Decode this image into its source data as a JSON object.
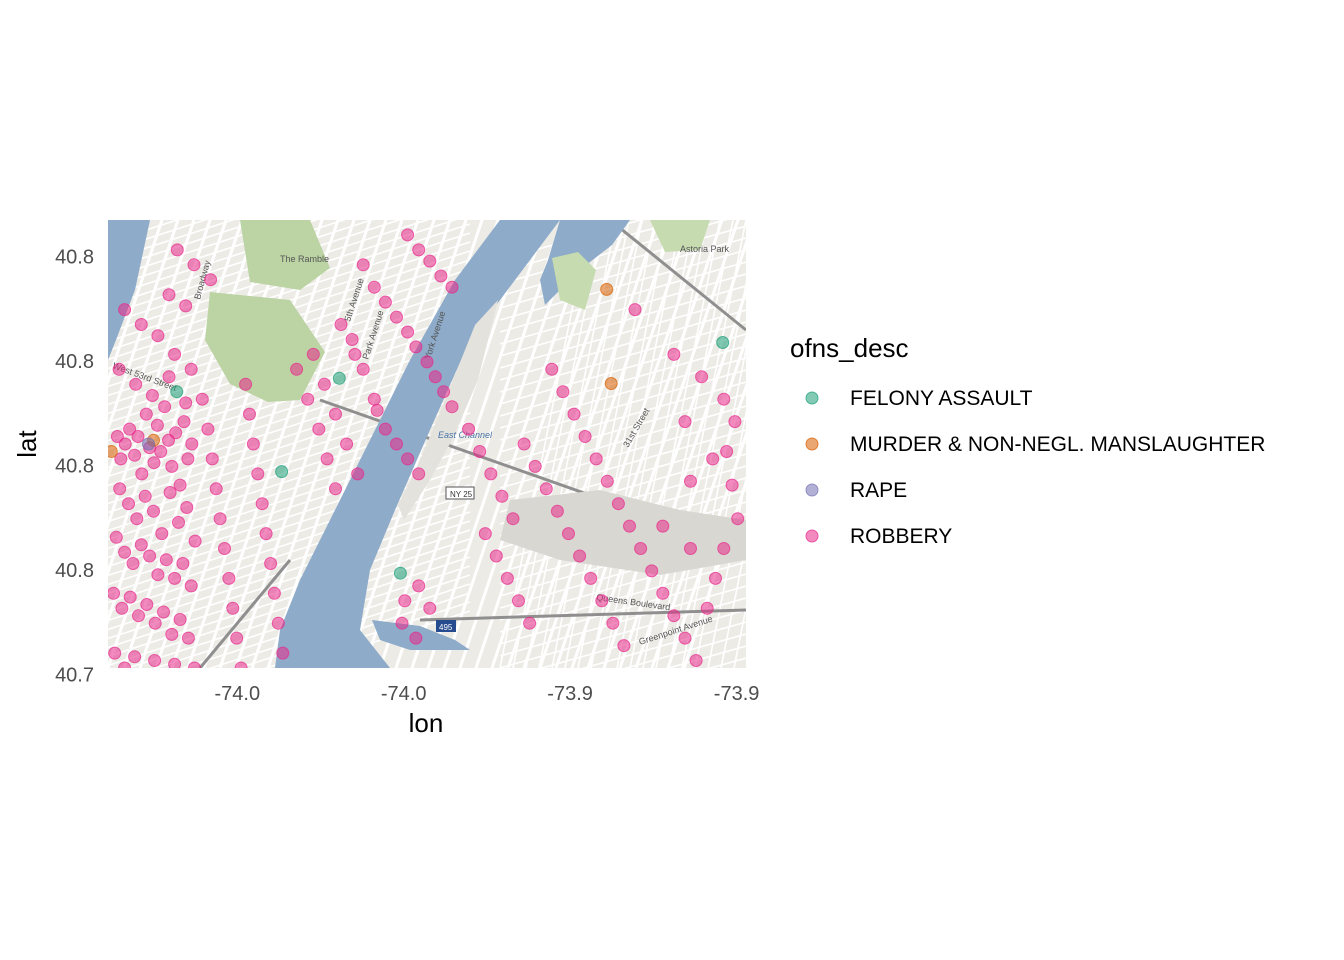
{
  "chart_data": {
    "type": "scatter",
    "title": "",
    "xlabel": "lon",
    "ylabel": "lat",
    "xlim": [
      -74.01,
      -73.895
    ],
    "ylim": [
      40.73,
      40.79
    ],
    "x_ticks": [
      {
        "value": -73.9867,
        "label": "-74.0"
      },
      {
        "value": -73.9567,
        "label": "-74.0"
      },
      {
        "value": -73.9267,
        "label": "-73.9"
      },
      {
        "value": -73.8967,
        "label": "-73.9"
      }
    ],
    "y_ticks": [
      {
        "value": 40.7851,
        "label": "40.8"
      },
      {
        "value": 40.7711,
        "label": "40.8"
      },
      {
        "value": 40.7571,
        "label": "40.8"
      },
      {
        "value": 40.7431,
        "label": "40.8"
      },
      {
        "value": 40.7291,
        "label": "40.7"
      }
    ],
    "basemap_labels": [
      "The Ramble",
      "Astoria Park",
      "West 53rd Street",
      "Broadway",
      "5th Avenue",
      "Park Avenue",
      "York Avenue",
      "East Channel",
      "NY 25",
      "495",
      "Queens Boulevard",
      "Greenpoint Avenue",
      "31st Street"
    ],
    "legend": {
      "title": "ofns_desc",
      "placement": "right",
      "entries": [
        {
          "name": "FELONY ASSAULT",
          "color": "#1b9e77"
        },
        {
          "name": "MURDER & NON-NEGL. MANSLAUGHTER",
          "color": "#d95f02"
        },
        {
          "name": "RAPE",
          "color": "#7570b3"
        },
        {
          "name": "ROBBERY",
          "color": "#e7298a"
        }
      ]
    },
    "series": [
      {
        "name": "FELONY ASSAULT",
        "color": "#1b9e77",
        "points": [
          [
            -73.9976,
            40.767
          ],
          [
            -73.9683,
            40.7688
          ],
          [
            -73.9787,
            40.7563
          ],
          [
            -73.9573,
            40.7427
          ],
          [
            -73.8992,
            40.7736
          ]
        ]
      },
      {
        "name": "MURDER & NON-NEGL. MANSLAUGHTER",
        "color": "#d95f02",
        "points": [
          [
            -74.0094,
            40.759
          ],
          [
            -73.9201,
            40.7807
          ],
          [
            -73.9193,
            40.7681
          ],
          [
            -74.0018,
            40.7605
          ]
        ]
      },
      {
        "name": "RAPE",
        "color": "#7570b3",
        "points": [
          [
            -74.0027,
            40.76
          ]
        ]
      },
      {
        "name": "ROBBERY",
        "color": "#e7298a",
        "points": [
          [
            -74.0083,
            40.761
          ],
          [
            -74.0077,
            40.758
          ],
          [
            -74.0069,
            40.76
          ],
          [
            -74.0061,
            40.762
          ],
          [
            -74.0052,
            40.7585
          ],
          [
            -74.0046,
            40.761
          ],
          [
            -74.0039,
            40.756
          ],
          [
            -74.0031,
            40.764
          ],
          [
            -74.0025,
            40.7595
          ],
          [
            -74.0017,
            40.7575
          ],
          [
            -74.0011,
            40.7625
          ],
          [
            -74.0005,
            40.759
          ],
          [
            -73.9998,
            40.765
          ],
          [
            -73.9991,
            40.7605
          ],
          [
            -73.9985,
            40.757
          ],
          [
            -73.9978,
            40.7615
          ],
          [
            -73.997,
            40.7545
          ],
          [
            -73.9963,
            40.763
          ],
          [
            -73.9956,
            40.758
          ],
          [
            -73.9949,
            40.76
          ],
          [
            -74.0079,
            40.754
          ],
          [
            -74.0063,
            40.752
          ],
          [
            -74.0048,
            40.75
          ],
          [
            -74.0033,
            40.753
          ],
          [
            -74.0018,
            40.751
          ],
          [
            -74.0003,
            40.748
          ],
          [
            -73.9988,
            40.7535
          ],
          [
            -73.9973,
            40.7495
          ],
          [
            -73.9958,
            40.7515
          ],
          [
            -73.9943,
            40.747
          ],
          [
            -74.0085,
            40.7475
          ],
          [
            -74.007,
            40.7455
          ],
          [
            -74.0055,
            40.744
          ],
          [
            -74.004,
            40.7465
          ],
          [
            -74.0025,
            40.745
          ],
          [
            -74.001,
            40.7425
          ],
          [
            -73.9995,
            40.7445
          ],
          [
            -73.998,
            40.742
          ],
          [
            -73.9965,
            40.744
          ],
          [
            -73.995,
            40.741
          ],
          [
            -74.009,
            40.74
          ],
          [
            -74.0075,
            40.738
          ],
          [
            -74.006,
            40.7395
          ],
          [
            -74.0045,
            40.737
          ],
          [
            -74.003,
            40.7385
          ],
          [
            -74.0015,
            40.736
          ],
          [
            -74.0,
            40.7375
          ],
          [
            -73.9985,
            40.7345
          ],
          [
            -73.997,
            40.7365
          ],
          [
            -73.9955,
            40.734
          ],
          [
            -74.0088,
            40.732
          ],
          [
            -74.007,
            40.73
          ],
          [
            -74.0052,
            40.7315
          ],
          [
            -74.0034,
            40.729
          ],
          [
            -74.0016,
            40.731
          ],
          [
            -73.9998,
            40.7285
          ],
          [
            -73.998,
            40.7305
          ],
          [
            -73.9962,
            40.728
          ],
          [
            -73.9944,
            40.73
          ],
          [
            -73.9926,
            40.7285
          ],
          [
            -73.993,
            40.766
          ],
          [
            -73.992,
            40.762
          ],
          [
            -73.9912,
            40.758
          ],
          [
            -73.9905,
            40.754
          ],
          [
            -73.9898,
            40.75
          ],
          [
            -73.989,
            40.746
          ],
          [
            -73.9882,
            40.742
          ],
          [
            -73.9875,
            40.738
          ],
          [
            -73.9868,
            40.734
          ],
          [
            -73.986,
            40.73
          ],
          [
            -73.9852,
            40.768
          ],
          [
            -73.9845,
            40.764
          ],
          [
            -73.9838,
            40.76
          ],
          [
            -73.983,
            40.756
          ],
          [
            -73.9822,
            40.752
          ],
          [
            -73.9815,
            40.748
          ],
          [
            -73.9807,
            40.744
          ],
          [
            -73.98,
            40.74
          ],
          [
            -73.9793,
            40.736
          ],
          [
            -73.9785,
            40.732
          ],
          [
            -74.007,
            40.778
          ],
          [
            -74.004,
            40.776
          ],
          [
            -74.001,
            40.7745
          ],
          [
            -73.998,
            40.772
          ],
          [
            -73.995,
            40.77
          ],
          [
            -74.008,
            40.77
          ],
          [
            -74.005,
            40.768
          ],
          [
            -74.002,
            40.7665
          ],
          [
            -73.999,
            40.769
          ],
          [
            -73.996,
            40.7655
          ],
          [
            -73.9975,
            40.786
          ],
          [
            -73.9945,
            40.784
          ],
          [
            -73.9915,
            40.782
          ],
          [
            -73.999,
            40.78
          ],
          [
            -73.996,
            40.7785
          ],
          [
            -73.976,
            40.77
          ],
          [
            -73.974,
            40.766
          ],
          [
            -73.972,
            40.762
          ],
          [
            -73.9705,
            40.758
          ],
          [
            -73.969,
            40.754
          ],
          [
            -73.973,
            40.772
          ],
          [
            -73.971,
            40.768
          ],
          [
            -73.969,
            40.764
          ],
          [
            -73.967,
            40.76
          ],
          [
            -73.965,
            40.756
          ],
          [
            -73.966,
            40.774
          ],
          [
            -73.964,
            40.77
          ],
          [
            -73.962,
            40.766
          ],
          [
            -73.968,
            40.776
          ],
          [
            -73.9655,
            40.772
          ],
          [
            -73.964,
            40.784
          ],
          [
            -73.962,
            40.781
          ],
          [
            -73.96,
            40.779
          ],
          [
            -73.958,
            40.777
          ],
          [
            -73.956,
            40.775
          ],
          [
            -73.9545,
            40.773
          ],
          [
            -73.9525,
            40.771
          ],
          [
            -73.951,
            40.769
          ],
          [
            -73.9495,
            40.767
          ],
          [
            -73.948,
            40.765
          ],
          [
            -73.956,
            40.788
          ],
          [
            -73.954,
            40.786
          ],
          [
            -73.952,
            40.7845
          ],
          [
            -73.95,
            40.7825
          ],
          [
            -73.948,
            40.781
          ],
          [
            -73.96,
            40.762
          ],
          [
            -73.958,
            40.76
          ],
          [
            -73.956,
            40.758
          ],
          [
            -73.954,
            40.756
          ],
          [
            -73.9615,
            40.7645
          ],
          [
            -73.957,
            40.736
          ],
          [
            -73.9545,
            40.734
          ],
          [
            -73.9565,
            40.739
          ],
          [
            -73.954,
            40.741
          ],
          [
            -73.952,
            40.738
          ],
          [
            -73.945,
            40.762
          ],
          [
            -73.943,
            40.759
          ],
          [
            -73.941,
            40.756
          ],
          [
            -73.939,
            40.753
          ],
          [
            -73.937,
            40.75
          ],
          [
            -73.935,
            40.76
          ],
          [
            -73.933,
            40.757
          ],
          [
            -73.931,
            40.754
          ],
          [
            -73.929,
            40.751
          ],
          [
            -73.927,
            40.748
          ],
          [
            -73.925,
            40.745
          ],
          [
            -73.923,
            40.742
          ],
          [
            -73.921,
            40.739
          ],
          [
            -73.919,
            40.736
          ],
          [
            -73.917,
            40.733
          ],
          [
            -73.942,
            40.748
          ],
          [
            -73.94,
            40.745
          ],
          [
            -73.938,
            40.742
          ],
          [
            -73.936,
            40.739
          ],
          [
            -73.934,
            40.736
          ],
          [
            -73.93,
            40.77
          ],
          [
            -73.928,
            40.767
          ],
          [
            -73.926,
            40.764
          ],
          [
            -73.924,
            40.761
          ],
          [
            -73.922,
            40.758
          ],
          [
            -73.92,
            40.755
          ],
          [
            -73.918,
            40.752
          ],
          [
            -73.916,
            40.749
          ],
          [
            -73.914,
            40.746
          ],
          [
            -73.912,
            40.743
          ],
          [
            -73.91,
            40.74
          ],
          [
            -73.908,
            40.737
          ],
          [
            -73.906,
            40.734
          ],
          [
            -73.904,
            40.731
          ],
          [
            -73.902,
            40.738
          ],
          [
            -73.915,
            40.778
          ],
          [
            -73.908,
            40.772
          ],
          [
            -73.903,
            40.769
          ],
          [
            -73.899,
            40.766
          ],
          [
            -73.897,
            40.763
          ],
          [
            -73.8985,
            40.759
          ],
          [
            -73.8975,
            40.7545
          ],
          [
            -73.8965,
            40.75
          ],
          [
            -73.899,
            40.746
          ],
          [
            -73.9005,
            40.742
          ],
          [
            -73.905,
            40.746
          ],
          [
            -73.91,
            40.749
          ],
          [
            -73.905,
            40.755
          ],
          [
            -73.901,
            40.758
          ],
          [
            -73.906,
            40.763
          ]
        ]
      }
    ]
  }
}
